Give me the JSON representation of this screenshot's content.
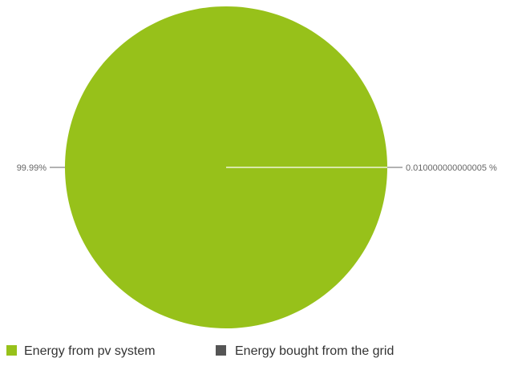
{
  "chart_data": {
    "type": "pie",
    "categories": [
      "Energy from pv system",
      "Energy bought from the grid"
    ],
    "values": [
      99.99,
      0.010000000000005
    ],
    "labels": [
      "99.99%",
      "0.010000000000005 %"
    ],
    "colors": [
      "#97c11a",
      "#555555"
    ],
    "legend_position": "bottom-left"
  }
}
